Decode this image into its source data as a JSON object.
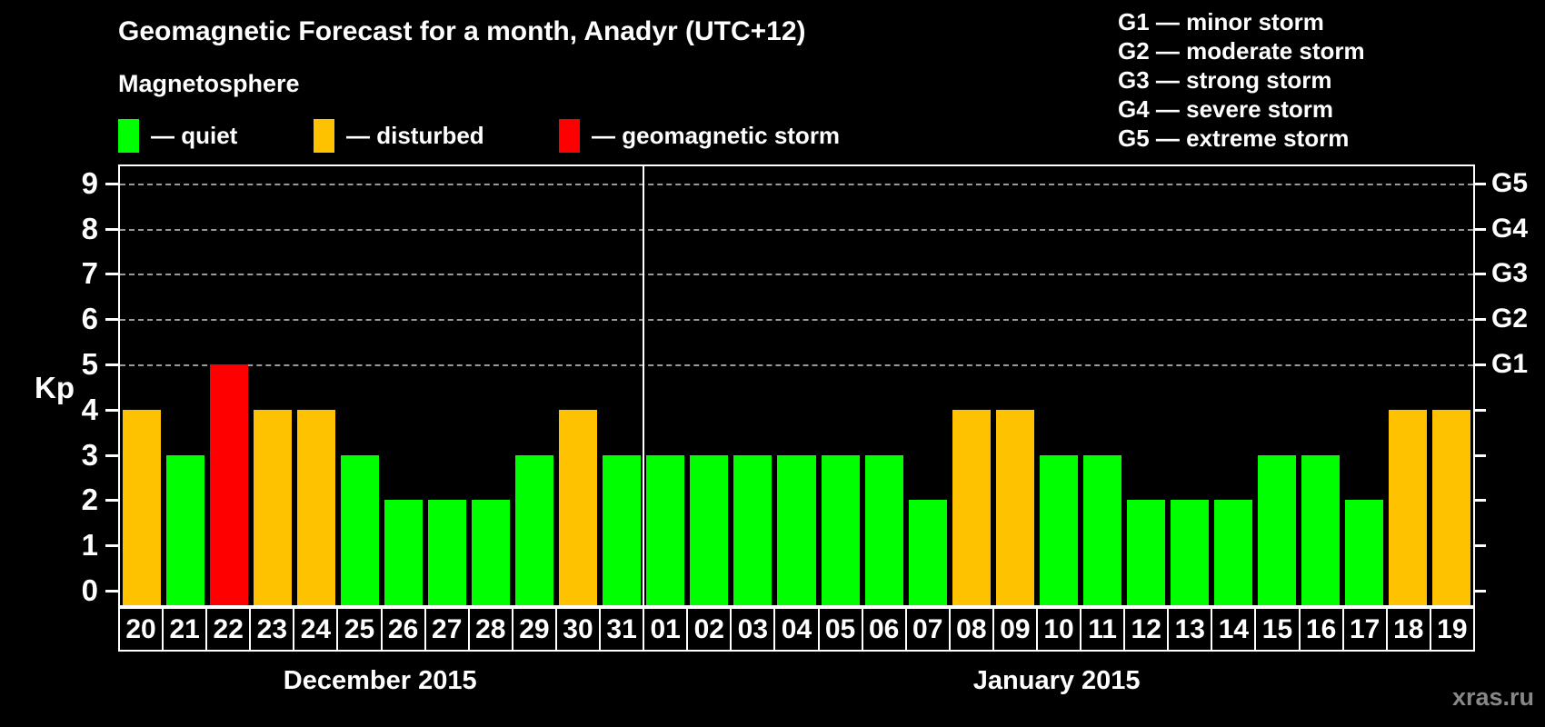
{
  "title": "Geomagnetic Forecast for a month, Anadyr (UTC+12)",
  "watermark": "xras.ru",
  "colors": {
    "quiet": "#00ff00",
    "disturbed": "#ffc200",
    "storm": "#ff0000",
    "grid": "#9a9a9a",
    "axis": "#ffffff",
    "watermark": "#888888"
  },
  "magnetosphere_legend": {
    "heading": "Magnetosphere",
    "items": [
      {
        "key": "quiet",
        "label": "— quiet"
      },
      {
        "key": "disturbed",
        "label": "— disturbed"
      },
      {
        "key": "storm",
        "label": "— geomagnetic storm"
      }
    ]
  },
  "g_legend": [
    "G1 — minor storm",
    "G2 — moderate storm",
    "G3 — strong storm",
    "G4 — severe storm",
    "G5 — extreme storm"
  ],
  "y_axis": {
    "label": "Kp",
    "ticks": [
      0,
      1,
      2,
      3,
      4,
      5,
      6,
      7,
      8,
      9
    ]
  },
  "right_axis": {
    "labels": [
      {
        "kp": 5,
        "label": "G1"
      },
      {
        "kp": 6,
        "label": "G2"
      },
      {
        "kp": 7,
        "label": "G3"
      },
      {
        "kp": 8,
        "label": "G4"
      },
      {
        "kp": 9,
        "label": "G5"
      }
    ]
  },
  "chart_data": {
    "type": "bar",
    "title": "Geomagnetic Forecast for a month, Anadyr (UTC+12)",
    "xlabel": "",
    "ylabel": "Kp",
    "ylim": [
      0,
      9
    ],
    "grid": "horizontal dashed at Kp 5..9 (G1..G5)",
    "legend_position": "top",
    "groups": [
      {
        "month_label": "December 2015",
        "days": [
          {
            "date": "20",
            "kp": 4,
            "status": "disturbed"
          },
          {
            "date": "21",
            "kp": 3,
            "status": "quiet"
          },
          {
            "date": "22",
            "kp": 5,
            "status": "storm"
          },
          {
            "date": "23",
            "kp": 4,
            "status": "disturbed"
          },
          {
            "date": "24",
            "kp": 4,
            "status": "disturbed"
          },
          {
            "date": "25",
            "kp": 3,
            "status": "quiet"
          },
          {
            "date": "26",
            "kp": 2,
            "status": "quiet"
          },
          {
            "date": "27",
            "kp": 2,
            "status": "quiet"
          },
          {
            "date": "28",
            "kp": 2,
            "status": "quiet"
          },
          {
            "date": "29",
            "kp": 3,
            "status": "quiet"
          },
          {
            "date": "30",
            "kp": 4,
            "status": "disturbed"
          },
          {
            "date": "31",
            "kp": 3,
            "status": "quiet"
          }
        ]
      },
      {
        "month_label": "January 2015",
        "days": [
          {
            "date": "01",
            "kp": 3,
            "status": "quiet"
          },
          {
            "date": "02",
            "kp": 3,
            "status": "quiet"
          },
          {
            "date": "03",
            "kp": 3,
            "status": "quiet"
          },
          {
            "date": "04",
            "kp": 3,
            "status": "quiet"
          },
          {
            "date": "05",
            "kp": 3,
            "status": "quiet"
          },
          {
            "date": "06",
            "kp": 3,
            "status": "quiet"
          },
          {
            "date": "07",
            "kp": 2,
            "status": "quiet"
          },
          {
            "date": "08",
            "kp": 4,
            "status": "disturbed"
          },
          {
            "date": "09",
            "kp": 4,
            "status": "disturbed"
          },
          {
            "date": "10",
            "kp": 3,
            "status": "quiet"
          },
          {
            "date": "11",
            "kp": 3,
            "status": "quiet"
          },
          {
            "date": "12",
            "kp": 2,
            "status": "quiet"
          },
          {
            "date": "13",
            "kp": 2,
            "status": "quiet"
          },
          {
            "date": "14",
            "kp": 2,
            "status": "quiet"
          },
          {
            "date": "15",
            "kp": 3,
            "status": "quiet"
          },
          {
            "date": "16",
            "kp": 3,
            "status": "quiet"
          },
          {
            "date": "17",
            "kp": 2,
            "status": "quiet"
          },
          {
            "date": "18",
            "kp": 4,
            "status": "disturbed"
          },
          {
            "date": "19",
            "kp": 4,
            "status": "disturbed"
          }
        ]
      }
    ]
  }
}
